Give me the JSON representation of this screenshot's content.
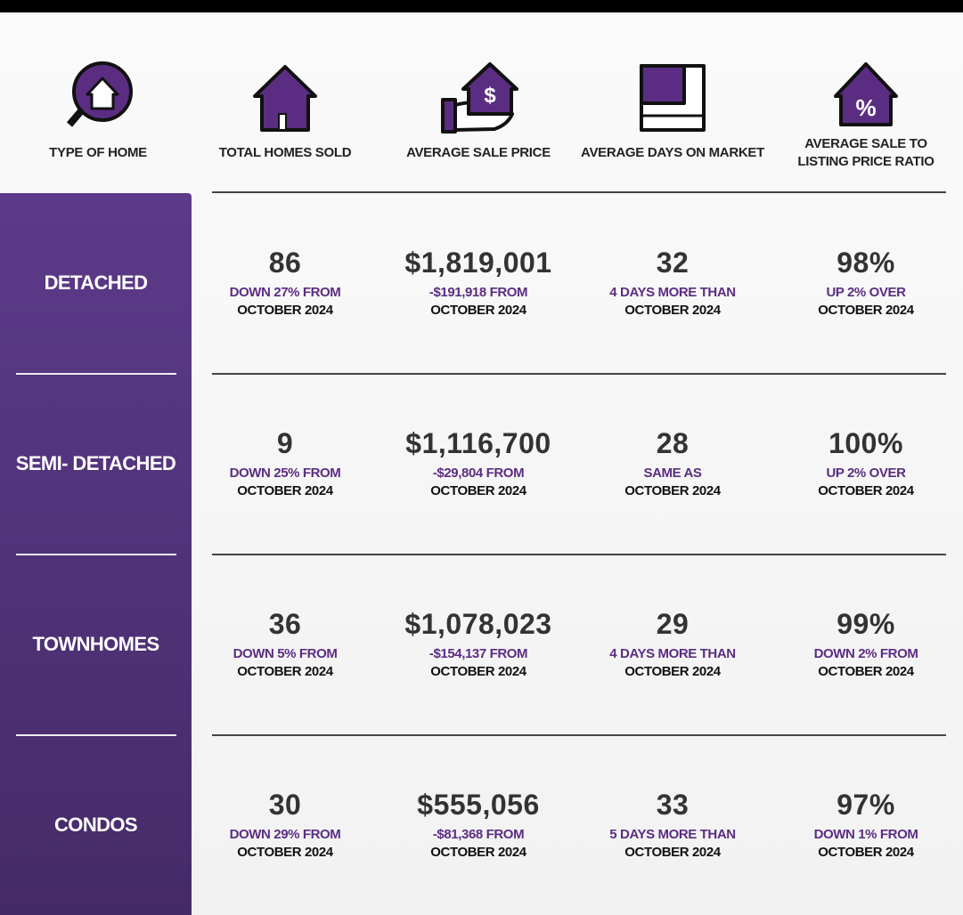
{
  "header": {
    "columns": [
      "TYPE OF HOME",
      "TOTAL HOMES SOLD",
      "AVERAGE SALE PRICE",
      "AVERAGE DAYS ON MARKET",
      "AVERAGE SALE TO LISTING PRICE RATIO"
    ]
  },
  "rows": [
    {
      "type": "DETACHED",
      "cells": [
        {
          "value": "86",
          "change": "DOWN 27% FROM",
          "period": "OCTOBER 2024"
        },
        {
          "value": "$1,819,001",
          "change": "-$191,918 FROM",
          "period": "OCTOBER 2024"
        },
        {
          "value": "32",
          "change": "4 DAYS MORE THAN",
          "period": "OCTOBER 2024"
        },
        {
          "value": "98%",
          "change": "UP 2% OVER",
          "period": "OCTOBER 2024"
        }
      ]
    },
    {
      "type": "SEMI- DETACHED",
      "cells": [
        {
          "value": "9",
          "change": "DOWN 25% FROM",
          "period": "OCTOBER 2024"
        },
        {
          "value": "$1,116,700",
          "change": "-$29,804 FROM",
          "period": "OCTOBER 2024"
        },
        {
          "value": "28",
          "change": "SAME AS",
          "period": "OCTOBER 2024"
        },
        {
          "value": "100%",
          "change": "UP 2% OVER",
          "period": "OCTOBER 2024"
        }
      ]
    },
    {
      "type": "TOWNHOMES",
      "cells": [
        {
          "value": "36",
          "change": "DOWN 5% FROM",
          "period": "OCTOBER 2024"
        },
        {
          "value": "$1,078,023",
          "change": "-$154,137 FROM",
          "period": "OCTOBER 2024"
        },
        {
          "value": "29",
          "change": "4 DAYS MORE THAN",
          "period": "OCTOBER 2024"
        },
        {
          "value": "99%",
          "change": "DOWN 2% FROM",
          "period": "OCTOBER 2024"
        }
      ]
    },
    {
      "type": "CONDOS",
      "cells": [
        {
          "value": "30",
          "change": "DOWN 29% FROM",
          "period": "OCTOBER 2024"
        },
        {
          "value": "$555,056",
          "change": "-$81,368 FROM",
          "period": "OCTOBER 2024"
        },
        {
          "value": "33",
          "change": "5 DAYS MORE THAN",
          "period": "OCTOBER 2024"
        },
        {
          "value": "97%",
          "change": "DOWN 1% FROM",
          "period": "OCTOBER 2024"
        }
      ]
    }
  ]
}
